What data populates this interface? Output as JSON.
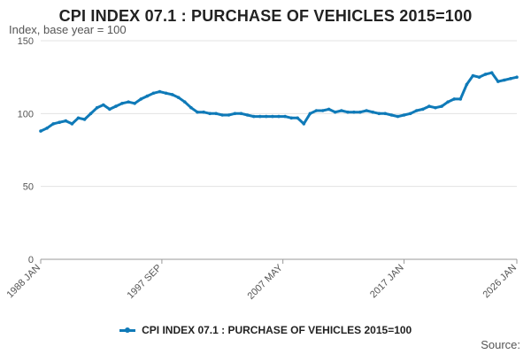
{
  "chart_data": {
    "type": "line",
    "title": "CPI INDEX 07.1 : PURCHASE OF VEHICLES 2015=100",
    "subtitle": "Index, base year = 100",
    "ylim": [
      0,
      150
    ],
    "y_ticks": [
      0,
      50,
      100,
      150
    ],
    "x_ticks": [
      {
        "label": "1988 JAN",
        "x": 1988.0
      },
      {
        "label": "1997 SEP",
        "x": 1997.67
      },
      {
        "label": "2007 MAY",
        "x": 2007.33
      },
      {
        "label": "2017 JAN",
        "x": 2017.0
      },
      {
        "label": "2026 JAN",
        "x": 2026.0
      }
    ],
    "xlim": [
      1988.0,
      2026.0
    ],
    "grid": true,
    "legend_position": "bottom",
    "source_label": "Source:",
    "series": [
      {
        "name": "CPI INDEX 07.1 : PURCHASE OF VEHICLES 2015=100",
        "color": "#0f7ab8",
        "x": [
          1988.0,
          1988.5,
          1989.0,
          1989.5,
          1990.0,
          1990.5,
          1991.0,
          1991.5,
          1992.0,
          1992.5,
          1993.0,
          1993.5,
          1994.0,
          1994.5,
          1995.0,
          1995.5,
          1996.0,
          1996.5,
          1997.0,
          1997.5,
          1998.0,
          1998.5,
          1999.0,
          1999.5,
          2000.0,
          2000.5,
          2001.0,
          2001.5,
          2002.0,
          2002.5,
          2003.0,
          2003.5,
          2004.0,
          2004.5,
          2005.0,
          2005.5,
          2006.0,
          2006.5,
          2007.0,
          2007.5,
          2008.0,
          2008.5,
          2009.0,
          2009.5,
          2010.0,
          2010.5,
          2011.0,
          2011.5,
          2012.0,
          2012.5,
          2013.0,
          2013.5,
          2014.0,
          2014.5,
          2015.0,
          2015.5,
          2016.0,
          2016.5,
          2017.0,
          2017.5,
          2018.0,
          2018.5,
          2019.0,
          2019.5,
          2020.0,
          2020.5,
          2021.0,
          2021.5,
          2022.0,
          2022.5,
          2023.0,
          2023.5,
          2024.0,
          2024.5,
          2025.0,
          2025.5,
          2026.0
        ],
        "values": [
          88,
          90,
          93,
          94,
          95,
          93,
          97,
          96,
          100,
          104,
          106,
          103,
          105,
          107,
          108,
          107,
          110,
          112,
          114,
          115,
          114,
          113,
          111,
          108,
          104,
          101,
          101,
          100,
          100,
          99,
          99,
          100,
          100,
          99,
          98,
          98,
          98,
          98,
          98,
          98,
          97,
          97,
          93,
          100,
          102,
          102,
          103,
          101,
          102,
          101,
          101,
          101,
          102,
          101,
          100,
          100,
          99,
          98,
          99,
          100,
          102,
          103,
          105,
          104,
          105,
          108,
          110,
          110,
          120,
          126,
          125,
          127,
          128,
          122,
          123,
          124,
          125
        ]
      }
    ]
  }
}
